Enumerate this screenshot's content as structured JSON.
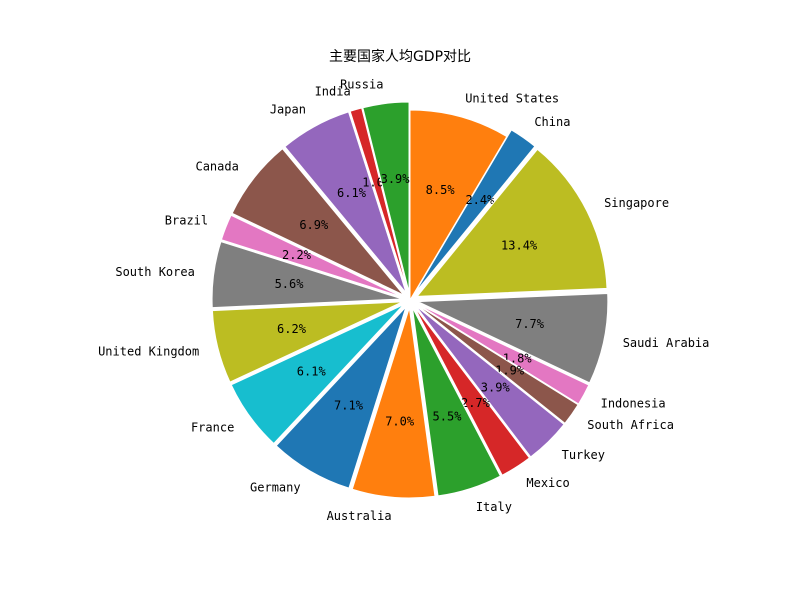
{
  "chart_data": {
    "type": "pie",
    "title": "主要国家人均GDP对比",
    "start_angle_deg": 90,
    "direction": "clockwise",
    "slices": [
      {
        "label": "United States",
        "percent": 8.5,
        "pct_label": "8.5%",
        "color": "#ff7f0e",
        "explode": false
      },
      {
        "label": "China",
        "percent": 2.4,
        "pct_label": "2.4%",
        "color": "#1f77b4",
        "explode": true
      },
      {
        "label": "Singapore",
        "percent": 13.4,
        "pct_label": "13.4%",
        "color": "#bcbd22",
        "explode": true
      },
      {
        "label": "Saudi Arabia",
        "percent": 7.7,
        "pct_label": "7.7%",
        "color": "#7f7f7f",
        "explode": true
      },
      {
        "label": "Indonesia",
        "percent": 1.8,
        "pct_label": "1.8%",
        "color": "#e377c2",
        "explode": true
      },
      {
        "label": "South Africa",
        "percent": 1.9,
        "pct_label": "1.9%",
        "color": "#8c564b",
        "explode": true
      },
      {
        "label": "Turkey",
        "percent": 3.9,
        "pct_label": "3.9%",
        "color": "#9467bd",
        "explode": true
      },
      {
        "label": "Mexico",
        "percent": 2.7,
        "pct_label": "2.7%",
        "color": "#d62728",
        "explode": true
      },
      {
        "label": "Italy",
        "percent": 5.5,
        "pct_label": "5.5%",
        "color": "#2ca02c",
        "explode": true
      },
      {
        "label": "Australia",
        "percent": 7.0,
        "pct_label": "7.0%",
        "color": "#ff7f0e",
        "explode": true
      },
      {
        "label": "Germany",
        "percent": 7.1,
        "pct_label": "7.1%",
        "color": "#1f77b4",
        "explode": true
      },
      {
        "label": "France",
        "percent": 6.1,
        "pct_label": "6.1%",
        "color": "#17becf",
        "explode": true
      },
      {
        "label": "United Kingdom",
        "percent": 6.2,
        "pct_label": "6.2%",
        "color": "#bcbd22",
        "explode": true
      },
      {
        "label": "South Korea",
        "percent": 5.6,
        "pct_label": "5.6%",
        "color": "#7f7f7f",
        "explode": true
      },
      {
        "label": "Brazil",
        "percent": 2.2,
        "pct_label": "2.2%",
        "color": "#e377c2",
        "explode": true
      },
      {
        "label": "Canada",
        "percent": 6.9,
        "pct_label": "6.9%",
        "color": "#8c564b",
        "explode": true
      },
      {
        "label": "Japan",
        "percent": 6.1,
        "pct_label": "6.1%",
        "color": "#9467bd",
        "explode": true
      },
      {
        "label": "India",
        "percent": 1.0,
        "pct_label": "1.0%",
        "color": "#d62728",
        "explode": true
      },
      {
        "label": "Russia",
        "percent": 3.9,
        "pct_label": "3.9%",
        "color": "#2ca02c",
        "explode": true
      }
    ]
  }
}
